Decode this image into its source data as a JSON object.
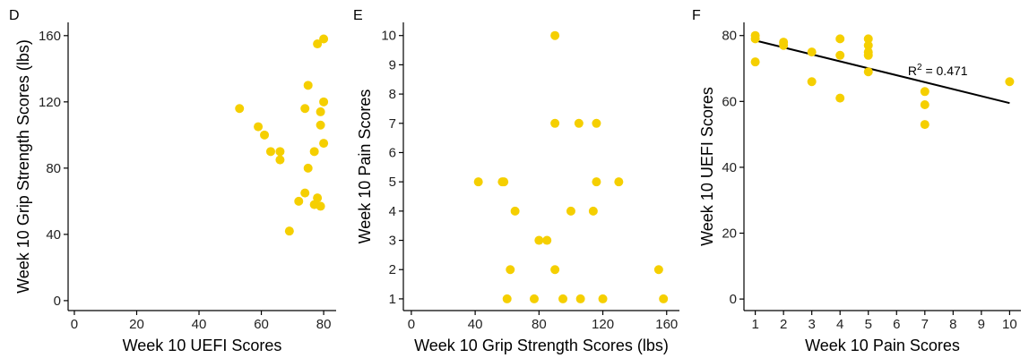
{
  "colors": {
    "point": "#F5CF00",
    "axis": "#000000",
    "text": "#000000",
    "fit_line": "#000000"
  },
  "chart_data": [
    {
      "panel": "D",
      "type": "scatter",
      "xlabel": "Week 10 UEFI Scores",
      "ylabel": "Week 10 Grip Strength Scores (lbs)",
      "xlim": [
        -2,
        84
      ],
      "ylim": [
        -6,
        168
      ],
      "xticks": [
        0,
        20,
        40,
        60,
        80
      ],
      "yticks": [
        0,
        40,
        80,
        120,
        160
      ],
      "grid": false,
      "points": [
        {
          "x": 53,
          "y": 116
        },
        {
          "x": 59,
          "y": 105
        },
        {
          "x": 61,
          "y": 100
        },
        {
          "x": 63,
          "y": 90
        },
        {
          "x": 66,
          "y": 90
        },
        {
          "x": 66,
          "y": 85
        },
        {
          "x": 69,
          "y": 42
        },
        {
          "x": 72,
          "y": 60
        },
        {
          "x": 74,
          "y": 116
        },
        {
          "x": 74,
          "y": 65
        },
        {
          "x": 75,
          "y": 130
        },
        {
          "x": 75,
          "y": 80
        },
        {
          "x": 77,
          "y": 90
        },
        {
          "x": 77,
          "y": 58
        },
        {
          "x": 78,
          "y": 155
        },
        {
          "x": 78,
          "y": 62
        },
        {
          "x": 79,
          "y": 114
        },
        {
          "x": 79,
          "y": 106
        },
        {
          "x": 79,
          "y": 57
        },
        {
          "x": 80,
          "y": 158
        },
        {
          "x": 80,
          "y": 120
        },
        {
          "x": 80,
          "y": 95
        }
      ]
    },
    {
      "panel": "E",
      "type": "scatter",
      "xlabel": "Week 10 Grip Strength Scores (lbs)",
      "ylabel": "Week 10 Pain Scores",
      "xlim": [
        -5,
        168
      ],
      "ylim": [
        0.6,
        10.45
      ],
      "xticks": [
        0,
        40,
        80,
        120,
        160
      ],
      "yticks": [
        1,
        2,
        3,
        4,
        5,
        6,
        7,
        8,
        9,
        10
      ],
      "grid": false,
      "points": [
        {
          "x": 42,
          "y": 5
        },
        {
          "x": 57,
          "y": 5
        },
        {
          "x": 58,
          "y": 5
        },
        {
          "x": 60,
          "y": 1
        },
        {
          "x": 62,
          "y": 2
        },
        {
          "x": 65,
          "y": 4
        },
        {
          "x": 77,
          "y": 1
        },
        {
          "x": 80,
          "y": 3
        },
        {
          "x": 85,
          "y": 3
        },
        {
          "x": 90,
          "y": 10
        },
        {
          "x": 90,
          "y": 7
        },
        {
          "x": 90,
          "y": 2
        },
        {
          "x": 95,
          "y": 1
        },
        {
          "x": 100,
          "y": 4
        },
        {
          "x": 105,
          "y": 7
        },
        {
          "x": 106,
          "y": 1
        },
        {
          "x": 114,
          "y": 4
        },
        {
          "x": 116,
          "y": 7
        },
        {
          "x": 116,
          "y": 5
        },
        {
          "x": 120,
          "y": 1
        },
        {
          "x": 130,
          "y": 5
        },
        {
          "x": 155,
          "y": 2
        },
        {
          "x": 158,
          "y": 1
        }
      ]
    },
    {
      "panel": "F",
      "type": "scatter",
      "xlabel": "Week 10 Pain Scores",
      "ylabel": "Week 10 UEFI Scores",
      "xlim": [
        0.6,
        10.4
      ],
      "ylim": [
        -3.5,
        84
      ],
      "xticks": [
        1,
        2,
        3,
        4,
        5,
        6,
        7,
        8,
        9,
        10
      ],
      "yticks": [
        0,
        20,
        40,
        60,
        80
      ],
      "grid": false,
      "annotation": {
        "text_base": "R",
        "text_sup": "2",
        "text_rest": " = 0.471",
        "x": 6.4,
        "y": 68
      },
      "fit_line": {
        "x": [
          1,
          10
        ],
        "y": [
          78.5,
          59.5
        ]
      },
      "points": [
        {
          "x": 1,
          "y": 80
        },
        {
          "x": 1,
          "y": 79
        },
        {
          "x": 1,
          "y": 72
        },
        {
          "x": 2,
          "y": 78
        },
        {
          "x": 2,
          "y": 77
        },
        {
          "x": 3,
          "y": 75
        },
        {
          "x": 3,
          "y": 66
        },
        {
          "x": 4,
          "y": 79
        },
        {
          "x": 4,
          "y": 74
        },
        {
          "x": 4,
          "y": 61
        },
        {
          "x": 5,
          "y": 79
        },
        {
          "x": 5,
          "y": 77
        },
        {
          "x": 5,
          "y": 75
        },
        {
          "x": 5,
          "y": 74
        },
        {
          "x": 5,
          "y": 69
        },
        {
          "x": 7,
          "y": 63
        },
        {
          "x": 7,
          "y": 59
        },
        {
          "x": 7,
          "y": 53
        },
        {
          "x": 10,
          "y": 66
        }
      ]
    }
  ]
}
